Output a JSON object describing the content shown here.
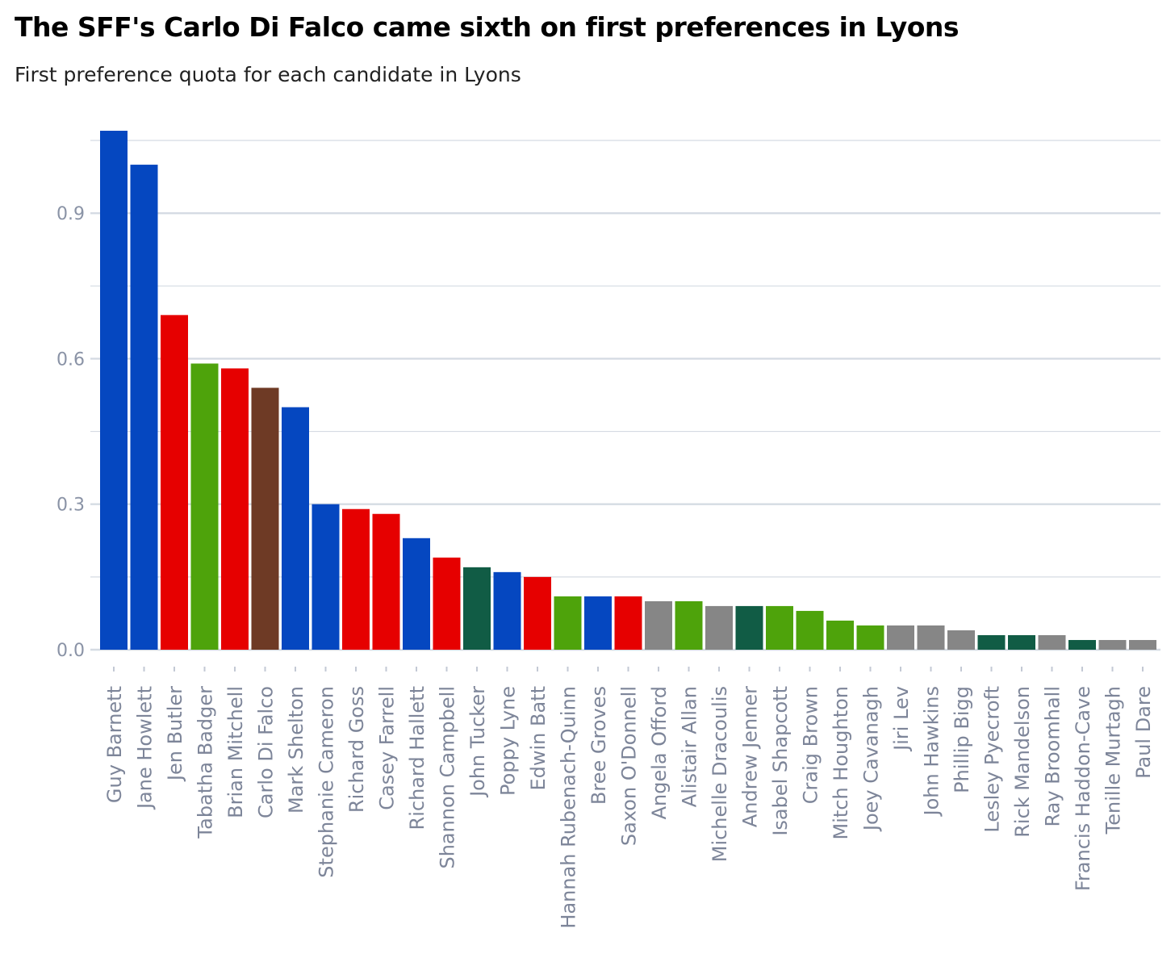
{
  "chart_data": {
    "type": "bar",
    "title": "The SFF's Carlo Di Falco came sixth on first preferences in Lyons",
    "subtitle": "First preference quota for each candidate in Lyons",
    "xlabel": "",
    "ylabel": "",
    "ylim": [
      0,
      1.07
    ],
    "yticks": [
      "0.0",
      "0.3",
      "0.6",
      "0.9"
    ],
    "ytick_values": [
      0,
      0.3,
      0.6,
      0.9
    ],
    "minor_gridlines": [
      0.15,
      0.45,
      0.75,
      1.05
    ],
    "grid": true,
    "legend": "none",
    "categories": [
      "Guy Barnett",
      "Jane Howlett",
      "Jen Butler",
      "Tabatha Badger",
      "Brian Mitchell",
      "Carlo Di Falco",
      "Mark Shelton",
      "Stephanie Cameron",
      "Richard Goss",
      "Casey Farrell",
      "Richard Hallett",
      "Shannon Campbell",
      "John Tucker",
      "Poppy Lyne",
      "Edwin Batt",
      "Hannah Rubenach-Quinn",
      "Bree Groves",
      "Saxon O'Donnell",
      "Angela Offord",
      "Alistair Allan",
      "Michelle Dracoulis",
      "Andrew Jenner",
      "Isabel Shapcott",
      "Craig Brown",
      "Mitch Houghton",
      "Joey Cavanagh",
      "Jiri Lev",
      "John Hawkins",
      "Phillip Bigg",
      "Lesley Pyecroft",
      "Rick Mandelson",
      "Ray Broomhall",
      "Francis Haddon-Cave",
      "Tenille Murtagh",
      "Paul Dare"
    ],
    "values": [
      1.07,
      1.0,
      0.69,
      0.59,
      0.58,
      0.54,
      0.5,
      0.3,
      0.29,
      0.28,
      0.23,
      0.19,
      0.17,
      0.16,
      0.15,
      0.11,
      0.11,
      0.11,
      0.1,
      0.1,
      0.09,
      0.09,
      0.09,
      0.08,
      0.06,
      0.05,
      0.05,
      0.05,
      0.04,
      0.03,
      0.03,
      0.03,
      0.02,
      0.02,
      0.02
    ],
    "bar_colors": [
      "#0547c0",
      "#0547c0",
      "#e60000",
      "#4ea30b",
      "#e60000",
      "#6e3a25",
      "#0547c0",
      "#0547c0",
      "#e60000",
      "#e60000",
      "#0547c0",
      "#e60000",
      "#115c45",
      "#0547c0",
      "#e60000",
      "#4ea30b",
      "#0547c0",
      "#e60000",
      "#868686",
      "#4ea30b",
      "#868686",
      "#115c45",
      "#4ea30b",
      "#4ea30b",
      "#4ea30b",
      "#4ea30b",
      "#868686",
      "#868686",
      "#868686",
      "#115c45",
      "#115c45",
      "#868686",
      "#115c45",
      "#868686",
      "#868686"
    ]
  },
  "colors": {
    "gridline": "#d5dbe3",
    "axis_text": "#8a93a6",
    "background": "#ffffff"
  }
}
